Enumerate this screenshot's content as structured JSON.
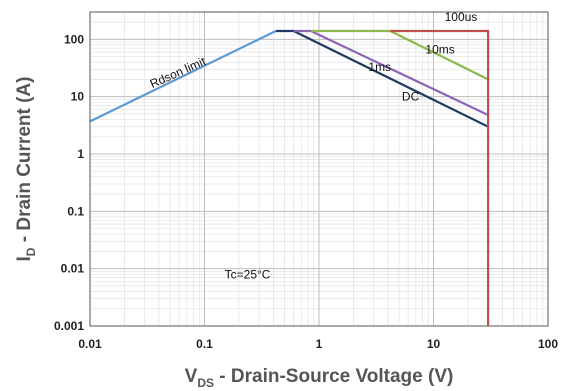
{
  "chart_data": {
    "type": "line",
    "x_scale": "log",
    "y_scale": "log",
    "xlim": [
      0.01,
      100
    ],
    "ylim": [
      0.001,
      300
    ],
    "grid": true,
    "x_ticks": [
      "0.01",
      "0.1",
      "1",
      "10",
      "100"
    ],
    "y_ticks": [
      "0.001",
      "0.01",
      "0.1",
      "1",
      "10",
      "100"
    ],
    "x_tick_values": [
      0.01,
      0.1,
      1,
      10,
      100
    ],
    "y_tick_values": [
      0.001,
      0.01,
      0.1,
      1,
      10,
      100
    ],
    "xlabel": {
      "main": "V",
      "sub": "DS",
      "rest": " - Drain-Source Voltage (V)"
    },
    "ylabel": {
      "main": "I",
      "sub": "D",
      "rest": " - Drain Current (A)"
    },
    "series": [
      {
        "name": "Rdson limit",
        "color": "#5b9bd5",
        "points": [
          [
            0.01,
            3.7
          ],
          [
            0.42,
            140
          ]
        ]
      },
      {
        "name": "DC",
        "color": "#1f3864",
        "points": [
          [
            0.42,
            140
          ],
          [
            0.6,
            140
          ],
          [
            30,
            3
          ]
        ]
      },
      {
        "name": "1ms",
        "color": "#8e64b8",
        "points": [
          [
            0.6,
            140
          ],
          [
            0.85,
            140
          ],
          [
            30,
            4.8
          ]
        ]
      },
      {
        "name": "10ms",
        "color": "#8fb84a",
        "points": [
          [
            0.85,
            140
          ],
          [
            4.2,
            140
          ],
          [
            30,
            20
          ]
        ]
      },
      {
        "name": "100us",
        "color": "#c0504d",
        "points": [
          [
            4.2,
            140
          ],
          [
            30,
            140
          ],
          [
            30,
            0.001
          ]
        ]
      }
    ],
    "annotations": [
      {
        "key": "rdson",
        "text": "Rdson limit",
        "x": 0.035,
        "y": 14,
        "rotate": -24
      },
      {
        "key": "dc",
        "text": "DC",
        "x": 5.3,
        "y": 8.5,
        "rotate": 0
      },
      {
        "key": "ms1",
        "text": "1ms",
        "x": 2.7,
        "y": 28,
        "rotate": 0
      },
      {
        "key": "ms10",
        "text": "10ms",
        "x": 8.5,
        "y": 57,
        "rotate": 0
      },
      {
        "key": "us100",
        "text": "100us",
        "x": 12.5,
        "y": 210,
        "rotate": 0
      },
      {
        "key": "tc",
        "text": "Tc=25°C",
        "x": 0.15,
        "y": 0.0068,
        "rotate": 0
      }
    ]
  }
}
